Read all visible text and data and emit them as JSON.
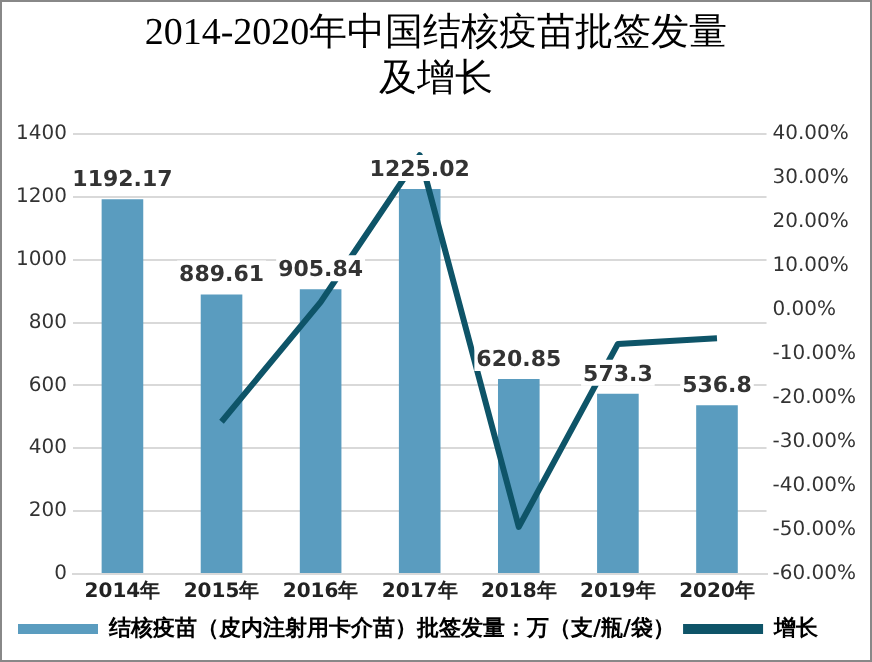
{
  "chart_data": {
    "type": "bar",
    "title": "2014-2020年中国结核疫苗批签发量及增长",
    "categories": [
      "2014年",
      "2015年",
      "2016年",
      "2017年",
      "2018年",
      "2019年",
      "2020年"
    ],
    "series": [
      {
        "name": "结核疫苗（皮内注射用卡介苗）批签发量：万（支/瓶/袋）",
        "color": "#5a9cbf",
        "values": [
          1192.17,
          889.61,
          905.84,
          1225.02,
          620.85,
          573.3,
          536.8
        ],
        "value_labels": [
          "1192.17",
          "889.61",
          "905.84",
          "1225.02",
          "620.85",
          "573.3",
          "536.8"
        ]
      },
      {
        "name": "增长",
        "type": "line",
        "axis": "y2",
        "color": "#0e5468",
        "values": [
          null,
          -25.4,
          1.8,
          35.2,
          -49.3,
          -7.7,
          -6.4
        ]
      }
    ],
    "ylim": [
      0,
      1400
    ],
    "yticks": [
      0,
      200,
      400,
      600,
      800,
      1000,
      1200,
      1400
    ],
    "y2lim": [
      -60,
      40
    ],
    "y2ticks": [
      {
        "value": -60,
        "label": "-60.00%"
      },
      {
        "value": -50,
        "label": "-50.00%"
      },
      {
        "value": -40,
        "label": "-40.00%"
      },
      {
        "value": -30,
        "label": "-30.00%"
      },
      {
        "value": -20,
        "label": "-20.00%"
      },
      {
        "value": -10,
        "label": "-10.00%"
      },
      {
        "value": 0,
        "label": "0.00%"
      },
      {
        "value": 10,
        "label": "10.00%"
      },
      {
        "value": 20,
        "label": "20.00%"
      },
      {
        "value": 30,
        "label": "30.00%"
      },
      {
        "value": 40,
        "label": "40.00%"
      }
    ],
    "grid": "y",
    "legend": "bottom",
    "marker": "none"
  }
}
